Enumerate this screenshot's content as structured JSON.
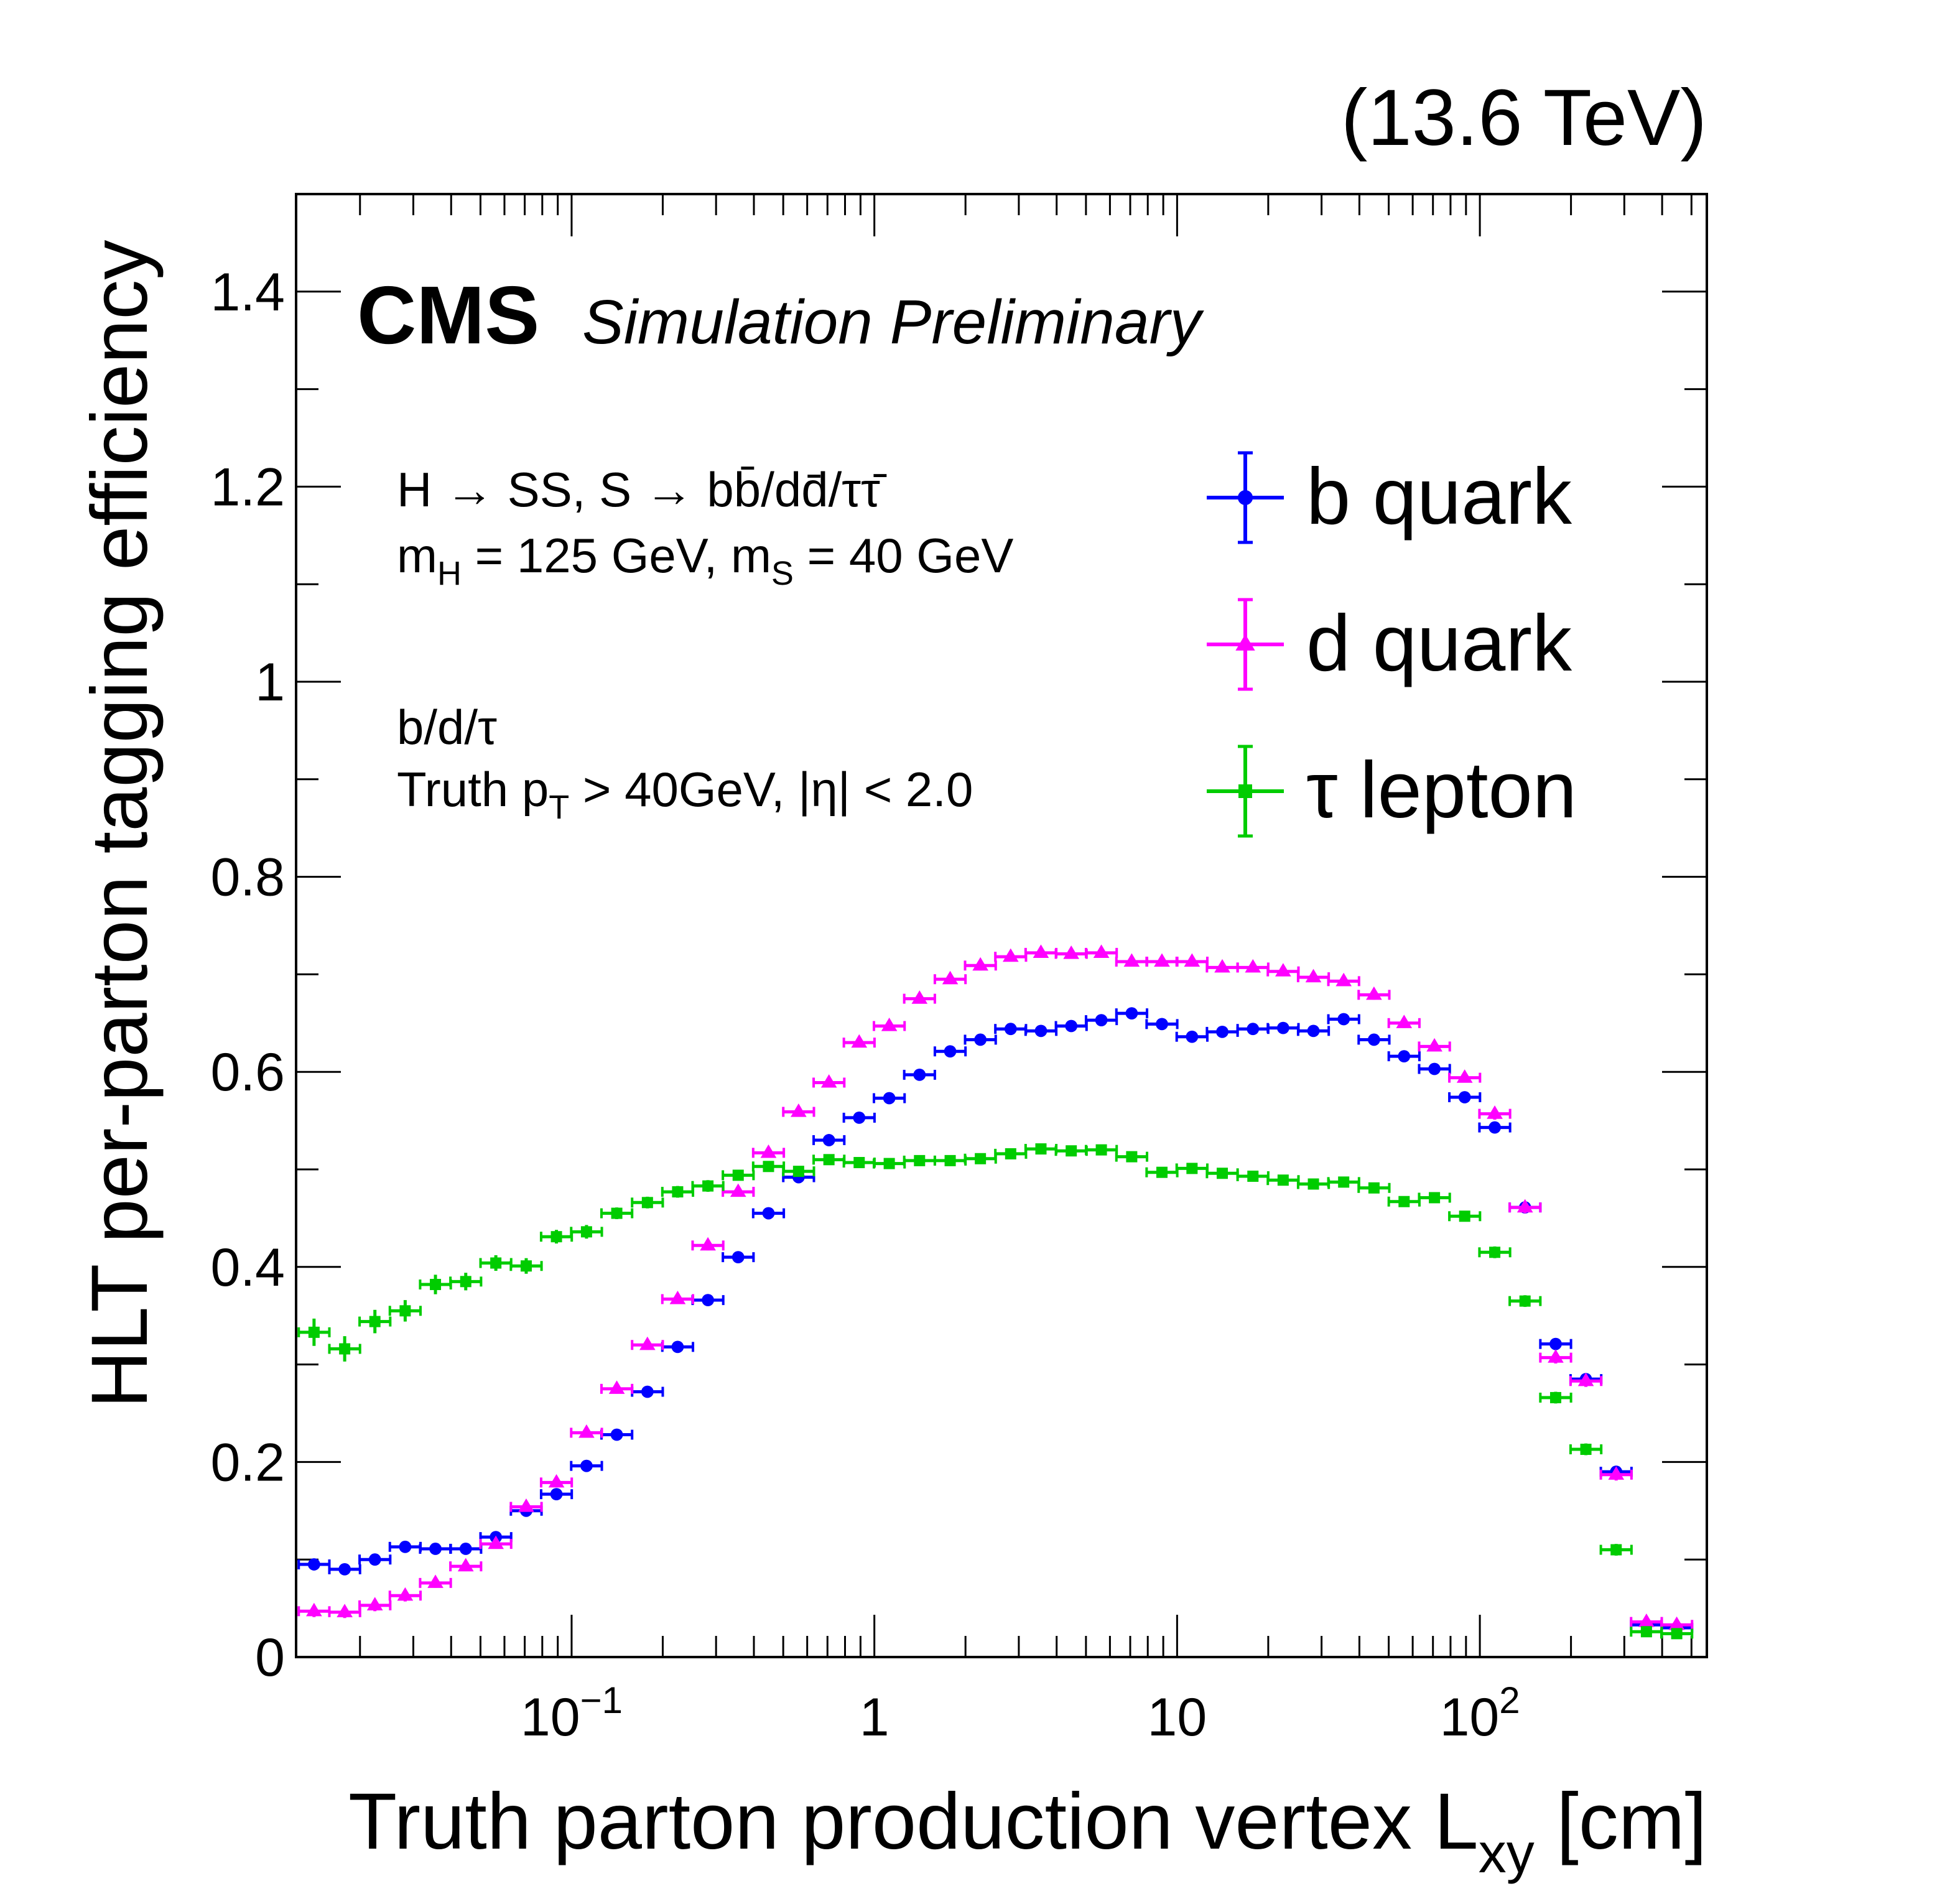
{
  "energy_label": "(13.6 TeV)",
  "cms_label": "CMS",
  "cms_sublabel": "Simulation Preliminary",
  "info_lines": {
    "process": "H → SS, S → bb̄/dd̄/ττ̄",
    "masses": {
      "mh": "m",
      "mh_sub": "H",
      "mid": " = 125 GeV, m",
      "ms_sub": "S",
      "end": " = 40 GeV"
    },
    "partons": "b/d/τ",
    "cuts": {
      "pre": "Truth p",
      "sub": "T",
      "post": " > 40GeV, |η| < 2.0"
    }
  },
  "chart_data": {
    "type": "scatter",
    "title": "",
    "xlabel": {
      "main": "Truth parton production vertex L",
      "sub": "xy",
      "unit": " [cm]"
    },
    "ylabel": "HLT per-parton tagging efficiency",
    "xscale": "log",
    "xlim": [
      0.0123,
      562
    ],
    "ylim": [
      0,
      1.5
    ],
    "grid": false,
    "legend_position": "top-right",
    "yticks": [
      0,
      0.2,
      0.4,
      0.6,
      0.8,
      1,
      1.2,
      1.4
    ],
    "ytick_labels": [
      "0",
      "0.2",
      "0.4",
      "0.6",
      "0.8",
      "1",
      "1.2",
      "1.4"
    ],
    "xticks": [
      0.1,
      1,
      10,
      100
    ],
    "xtick_labels": [
      {
        "base": "10",
        "exp": "−1"
      },
      {
        "base": "1",
        "exp": ""
      },
      {
        "base": "10",
        "exp": ""
      },
      {
        "base": "10",
        "exp": "2"
      }
    ],
    "x": [
      0.0141,
      0.0178,
      0.0224,
      0.0282,
      0.0355,
      0.0447,
      0.0562,
      0.0708,
      0.0891,
      0.112,
      0.141,
      0.178,
      0.224,
      0.282,
      0.355,
      0.447,
      0.562,
      0.708,
      0.891,
      1.12,
      1.41,
      1.78,
      2.24,
      2.82,
      3.55,
      4.47,
      5.62,
      7.08,
      8.91,
      11.2,
      14.1,
      17.8,
      22.4,
      28.2,
      35.5,
      44.7,
      56.2,
      70.8,
      89.1,
      112,
      141,
      178,
      224,
      282,
      355,
      447
    ],
    "series": [
      {
        "name": "b quark",
        "color": "#0000ff",
        "marker": "circle",
        "values": [
          0.095,
          0.09,
          0.1,
          0.113,
          0.111,
          0.111,
          0.123,
          0.15,
          0.167,
          0.196,
          0.228,
          0.272,
          0.318,
          0.366,
          0.41,
          0.455,
          0.492,
          0.53,
          0.553,
          0.573,
          0.597,
          0.621,
          0.633,
          0.644,
          0.642,
          0.647,
          0.653,
          0.66,
          0.649,
          0.636,
          0.641,
          0.644,
          0.645,
          0.642,
          0.654,
          0.633,
          0.616,
          0.603,
          0.574,
          0.543,
          0.461,
          0.321,
          0.285,
          0.19,
          0.033,
          0.03
        ],
        "errors": [
          0.006,
          0.006,
          0.006,
          0.006,
          0.005,
          0.005,
          0.005,
          0.005,
          0.005,
          0.005,
          0.005,
          0.005,
          0.005,
          0.005,
          0.005,
          0.005,
          0.005,
          0.005,
          0.005,
          0.005,
          0.005,
          0.005,
          0.005,
          0.005,
          0.005,
          0.005,
          0.005,
          0.005,
          0.005,
          0.005,
          0.005,
          0.005,
          0.005,
          0.005,
          0.005,
          0.005,
          0.005,
          0.005,
          0.005,
          0.006,
          0.006,
          0.006,
          0.006,
          0.006,
          0.005,
          0.005
        ]
      },
      {
        "name": "d quark",
        "color": "#ff00ff",
        "marker": "triangle",
        "values": [
          0.047,
          0.046,
          0.053,
          0.063,
          0.076,
          0.093,
          0.116,
          0.154,
          0.179,
          0.23,
          0.275,
          0.32,
          0.367,
          0.422,
          0.477,
          0.517,
          0.559,
          0.589,
          0.63,
          0.647,
          0.675,
          0.695,
          0.709,
          0.718,
          0.722,
          0.721,
          0.722,
          0.713,
          0.713,
          0.713,
          0.707,
          0.707,
          0.703,
          0.697,
          0.693,
          0.679,
          0.65,
          0.626,
          0.594,
          0.557,
          0.461,
          0.307,
          0.283,
          0.187,
          0.036,
          0.033
        ],
        "errors": [
          0.006,
          0.006,
          0.006,
          0.006,
          0.005,
          0.005,
          0.005,
          0.005,
          0.005,
          0.005,
          0.005,
          0.005,
          0.005,
          0.005,
          0.005,
          0.005,
          0.005,
          0.005,
          0.005,
          0.005,
          0.005,
          0.005,
          0.005,
          0.005,
          0.005,
          0.005,
          0.005,
          0.005,
          0.005,
          0.005,
          0.005,
          0.005,
          0.005,
          0.005,
          0.005,
          0.005,
          0.005,
          0.005,
          0.005,
          0.006,
          0.006,
          0.006,
          0.006,
          0.006,
          0.005,
          0.005
        ]
      },
      {
        "name": "τ lepton",
        "color": "#00cc00",
        "marker": "square",
        "values": [
          0.333,
          0.316,
          0.344,
          0.355,
          0.382,
          0.385,
          0.404,
          0.401,
          0.431,
          0.436,
          0.455,
          0.466,
          0.477,
          0.483,
          0.494,
          0.503,
          0.498,
          0.51,
          0.507,
          0.506,
          0.509,
          0.509,
          0.511,
          0.516,
          0.521,
          0.519,
          0.52,
          0.513,
          0.497,
          0.501,
          0.496,
          0.493,
          0.489,
          0.485,
          0.487,
          0.481,
          0.467,
          0.471,
          0.452,
          0.415,
          0.365,
          0.266,
          0.213,
          0.11,
          0.026,
          0.024
        ],
        "errors": [
          0.014,
          0.013,
          0.012,
          0.011,
          0.01,
          0.009,
          0.008,
          0.008,
          0.007,
          0.007,
          0.006,
          0.006,
          0.006,
          0.006,
          0.005,
          0.005,
          0.005,
          0.005,
          0.005,
          0.005,
          0.005,
          0.005,
          0.005,
          0.005,
          0.005,
          0.005,
          0.005,
          0.005,
          0.005,
          0.005,
          0.005,
          0.005,
          0.005,
          0.005,
          0.005,
          0.005,
          0.005,
          0.005,
          0.005,
          0.006,
          0.006,
          0.006,
          0.006,
          0.006,
          0.005,
          0.005
        ]
      }
    ]
  }
}
